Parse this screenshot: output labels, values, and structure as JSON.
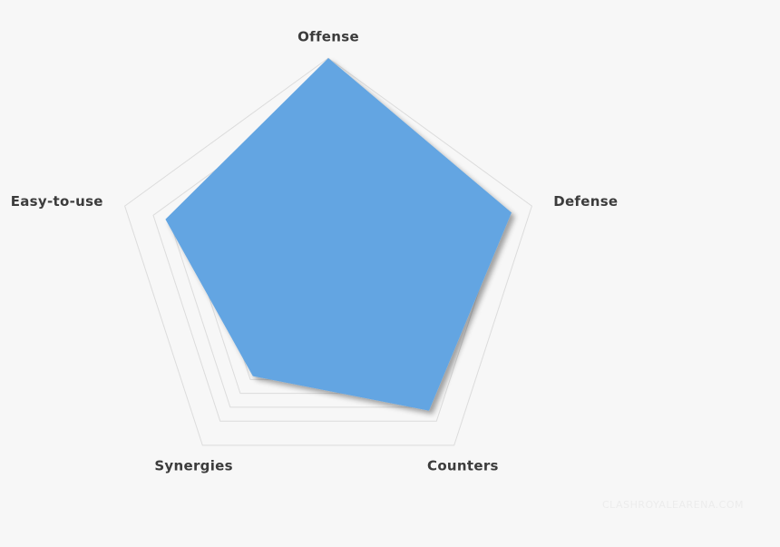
{
  "chart_data": {
    "type": "radar",
    "axes": [
      "Offense",
      "Defense",
      "Counters",
      "Synergies",
      "Easy-to-use"
    ],
    "values": [
      10,
      9,
      8,
      6,
      8
    ],
    "rmax": 10,
    "grid": true,
    "series_color": "#63a5e2"
  },
  "watermark": "CLASHROYALEARENA.COM"
}
